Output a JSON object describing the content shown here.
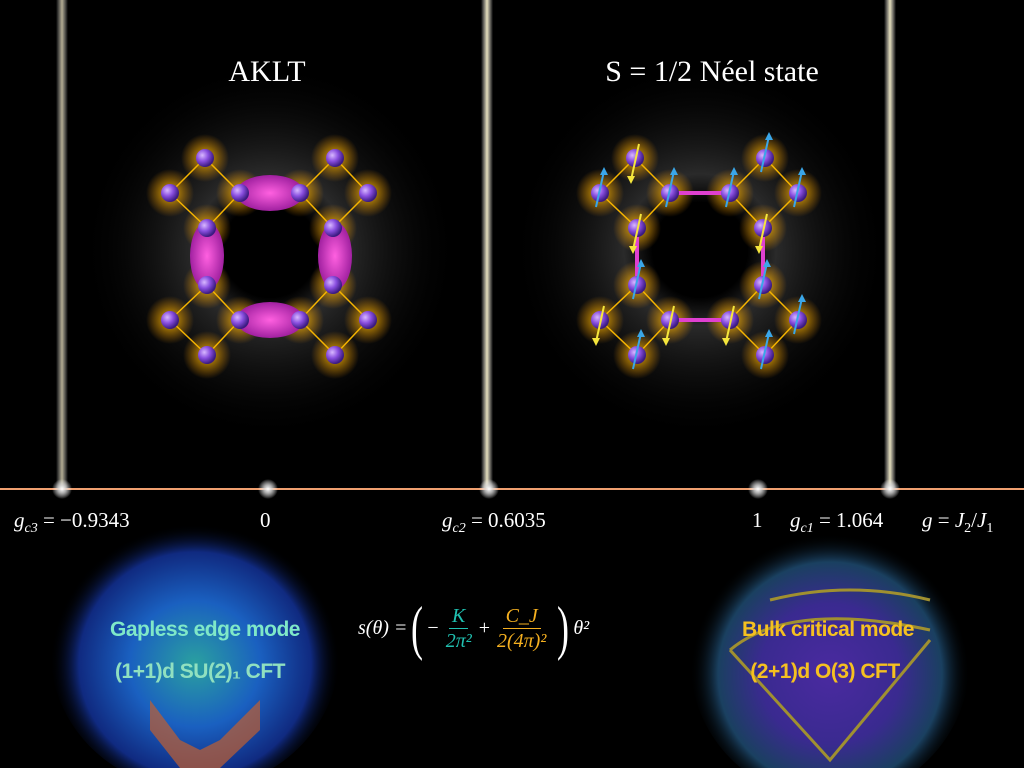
{
  "titles": {
    "left": "AKLT",
    "right": "S = 1/2 Néel state"
  },
  "axis": {
    "gc3_sym": "g",
    "gc3_sub": "c3",
    "gc3_val": " = −0.9343",
    "zero": "0",
    "gc2_sym": "g",
    "gc2_sub": "c2",
    "gc2_val": " = 0.6035",
    "one": "1",
    "gc1_sym": "g",
    "gc1_sub": "c1",
    "gc1_val": " = 1.064",
    "g_sym": "g",
    "g_eq": " = ",
    "j2": "J",
    "j2_sub": "2",
    "slash": "/",
    "j1": "J",
    "j1_sub": "1"
  },
  "edge_mode": {
    "line1": "Gapless edge mode",
    "line2": "(1+1)d SU(2)₁ CFT"
  },
  "bulk_mode": {
    "line1": "Bulk critical mode",
    "line2": "(2+1)d O(3) CFT"
  },
  "equation": {
    "lhs": "s(θ) = ",
    "minus": "−",
    "k_num": "K",
    "k_den": "2π²",
    "plus": "+",
    "c_num": "C_J",
    "c_den": "2(4π)²",
    "tail": "θ²"
  },
  "colors": {
    "atom": "#8a4fe0",
    "glow": "#f5b400",
    "bond": "#e040d0",
    "arrow_up": "#f5e63c",
    "arrow_down": "#3aa6e8",
    "axis_line": "#f0a070",
    "edge_text": "#7fe8c8",
    "bulk_text": "#f5c020",
    "k_color": "#20c0b0",
    "c_color": "#f5b020"
  }
}
